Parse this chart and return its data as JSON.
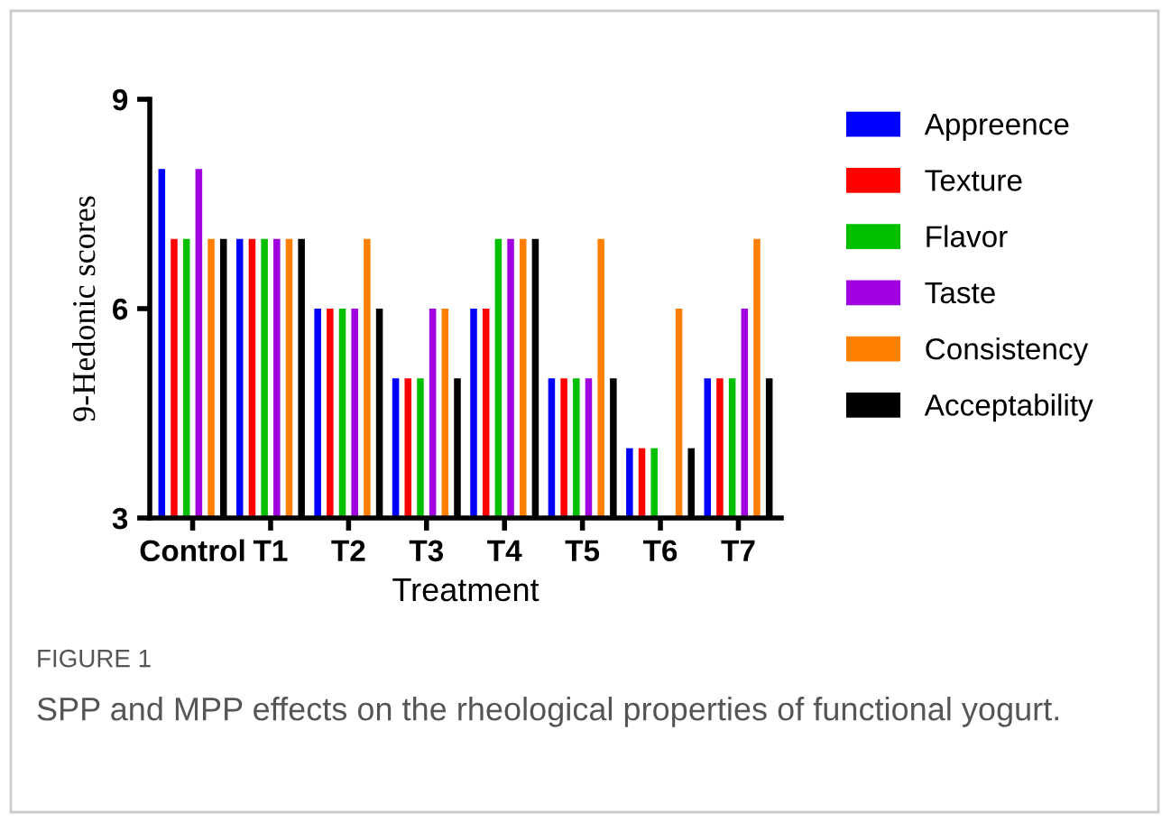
{
  "chart_data": {
    "type": "bar",
    "xlabel": "Treatment",
    "ylabel": "9-Hedonic scores",
    "categories": [
      "Control",
      "T1",
      "T2",
      "T3",
      "T4",
      "T5",
      "T6",
      "T7"
    ],
    "series": [
      {
        "name": "Appreence",
        "color": "#0000ff",
        "values": [
          8,
          7,
          6,
          5,
          6,
          5,
          4,
          5
        ]
      },
      {
        "name": "Texture",
        "color": "#ff0000",
        "values": [
          7,
          7,
          6,
          5,
          6,
          5,
          4,
          5
        ]
      },
      {
        "name": "Flavor",
        "color": "#00c000",
        "values": [
          7,
          7,
          6,
          5,
          7,
          5,
          4,
          5
        ]
      },
      {
        "name": "Taste",
        "color": "#a000e0",
        "values": [
          8,
          7,
          6,
          6,
          7,
          5,
          null,
          6
        ]
      },
      {
        "name": "Consistency",
        "color": "#ff8000",
        "values": [
          7,
          7,
          7,
          6,
          7,
          7,
          6,
          7
        ]
      },
      {
        "name": "Acceptability",
        "color": "#000000",
        "values": [
          7,
          7,
          6,
          5,
          7,
          5,
          4,
          5
        ]
      }
    ],
    "ylim": [
      3,
      9
    ],
    "yticks": [
      3,
      6,
      9
    ],
    "grid": false,
    "legend": "right",
    "annotations": [
      "FIGURE 1",
      "SPP and MPP effects on the rheological properties of functional yogurt."
    ]
  }
}
